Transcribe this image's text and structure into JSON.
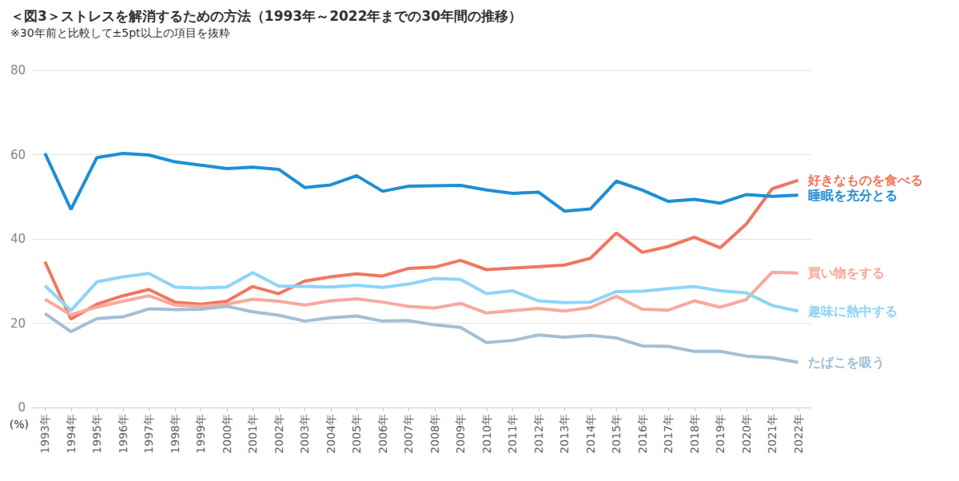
{
  "chart_data": {
    "type": "line",
    "title": "＜図3＞ストレスを解消するための方法（1993年～2022年までの30年間の推移）",
    "subtitle": "※30年前と比較して±5pt以上の項目を抜粋",
    "ylabel": "(%)",
    "categories": [
      "1993年",
      "1994年",
      "1995年",
      "1996年",
      "1997年",
      "1998年",
      "1999年",
      "2000年",
      "2001年",
      "2002年",
      "2003年",
      "2004年",
      "2005年",
      "2006年",
      "2007年",
      "2008年",
      "2009年",
      "2010年",
      "2011年",
      "2012年",
      "2013年",
      "2014年",
      "2015年",
      "2016年",
      "2017年",
      "2018年",
      "2019年",
      "2020年",
      "2021年",
      "2022年"
    ],
    "series": [
      {
        "name": "好きなものを食べる",
        "color": "#f0775f",
        "values": [
          34.6,
          21,
          24.5,
          26.5,
          28,
          25,
          24.5,
          25.2,
          28.7,
          27,
          30,
          31,
          31.7,
          31.2,
          33,
          33.3,
          34.9,
          32.7,
          33.1,
          33.4,
          33.8,
          35.4,
          41.4,
          36.8,
          38.2,
          40.4,
          37.9,
          43.5,
          51.9,
          53.9
        ]
      },
      {
        "name": "睡眠を充分とる",
        "color": "#1e8fd5",
        "values": [
          60.3,
          47,
          59.3,
          60.3,
          59.9,
          58.3,
          57.5,
          56.7,
          57,
          56.5,
          52.2,
          52.8,
          55,
          51.3,
          52.5,
          52.6,
          52.7,
          51.6,
          50.8,
          51.1,
          46.6,
          47.1,
          53.7,
          51.6,
          48.9,
          49.4,
          48.5,
          50.5,
          50.1,
          50.4
        ]
      },
      {
        "name": "買い物をする",
        "color": "#f7aa9d",
        "values": [
          25.7,
          22,
          23.8,
          25.2,
          26.5,
          24.3,
          24,
          24.5,
          25.7,
          25.2,
          24.3,
          25.3,
          25.8,
          25,
          24,
          23.6,
          24.7,
          22.4,
          23,
          23.5,
          22.9,
          23.7,
          26.4,
          23.3,
          23.1,
          25.3,
          23.8,
          25.6,
          32.1,
          31.9
        ]
      },
      {
        "name": "趣味に熱中する",
        "color": "#8dd5f6",
        "values": [
          28.9,
          23,
          29.8,
          31,
          31.8,
          28.6,
          28.3,
          28.6,
          32,
          28.8,
          28.7,
          28.6,
          29,
          28.5,
          29.3,
          30.6,
          30.4,
          27,
          27.7,
          25.3,
          24.9,
          25,
          27.5,
          27.6,
          28.2,
          28.7,
          27.7,
          27.2,
          24.2,
          22.9
        ]
      },
      {
        "name": "たばこを吸う",
        "color": "#a3bfd4",
        "values": [
          22.3,
          18,
          21.1,
          21.5,
          23.4,
          23.2,
          23.3,
          24,
          22.7,
          21.9,
          20.5,
          21.3,
          21.7,
          20.5,
          20.6,
          19.6,
          19,
          15.4,
          15.9,
          17.2,
          16.7,
          17.1,
          16.5,
          14.6,
          14.5,
          13.3,
          13.3,
          12.2,
          11.8,
          10.7
        ]
      }
    ],
    "ylim": [
      0,
      80
    ],
    "yticks": [
      0,
      20,
      40,
      60,
      80
    ],
    "grid": true
  }
}
